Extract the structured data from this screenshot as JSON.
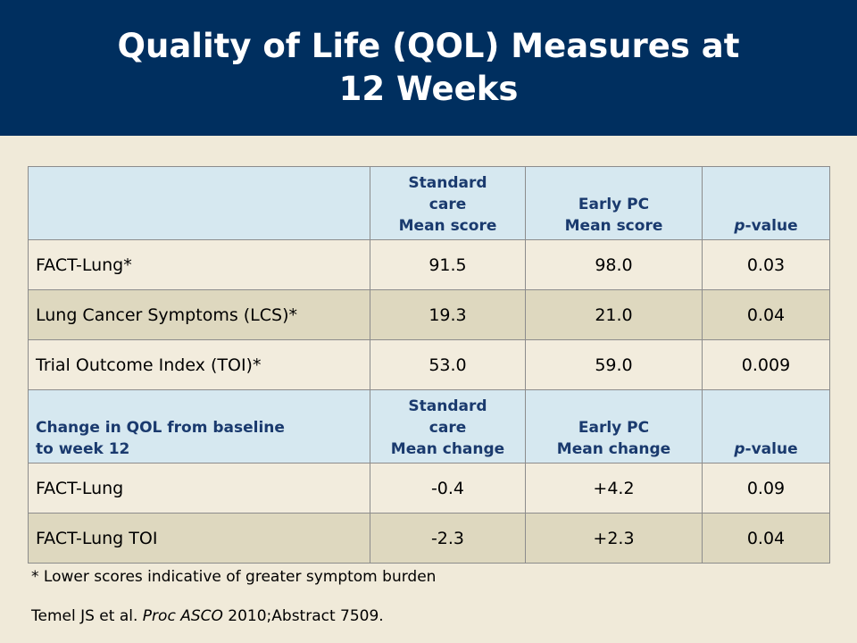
{
  "title_line1": "Quality of Life (QOL) Measures at",
  "title_line2": "12 Weeks",
  "header1": {
    "c1": "",
    "c2_line1": "Standard",
    "c2_line2": "care",
    "c2_line3": "Mean score",
    "c3_line1": "Early PC",
    "c3_line2": "Mean score",
    "c4_italic": "p",
    "c4_rest": "-value"
  },
  "rows1": [
    {
      "label": "FACT-Lung*",
      "standard": "91.5",
      "early": "98.0",
      "p": "0.03"
    },
    {
      "label": "Lung Cancer Symptoms (LCS)*",
      "standard": "19.3",
      "early": "21.0",
      "p": "0.04"
    },
    {
      "label": "Trial Outcome Index (TOI)*",
      "standard": "53.0",
      "early": "59.0",
      "p": "0.009"
    }
  ],
  "header2": {
    "c1_line1": "Change in QOL from baseline",
    "c1_line2": "to week 12",
    "c2_line1": "Standard",
    "c2_line2": "care",
    "c2_line3": "Mean change",
    "c3_line1": "Early PC",
    "c3_line2": "Mean change",
    "c4_italic": "p",
    "c4_rest": "-value"
  },
  "rows2": [
    {
      "label": "FACT-Lung",
      "standard": "-0.4",
      "early": "+4.2",
      "p": "0.09"
    },
    {
      "label": "FACT-Lung TOI",
      "standard": "-2.3",
      "early": "+2.3",
      "p": "0.04"
    }
  ],
  "footnote": "* Lower scores indicative of greater symptom burden",
  "citation": {
    "authors": "Temel JS et al. ",
    "journal": "Proc ASCO",
    "rest": " 2010;Abstract 7509."
  }
}
